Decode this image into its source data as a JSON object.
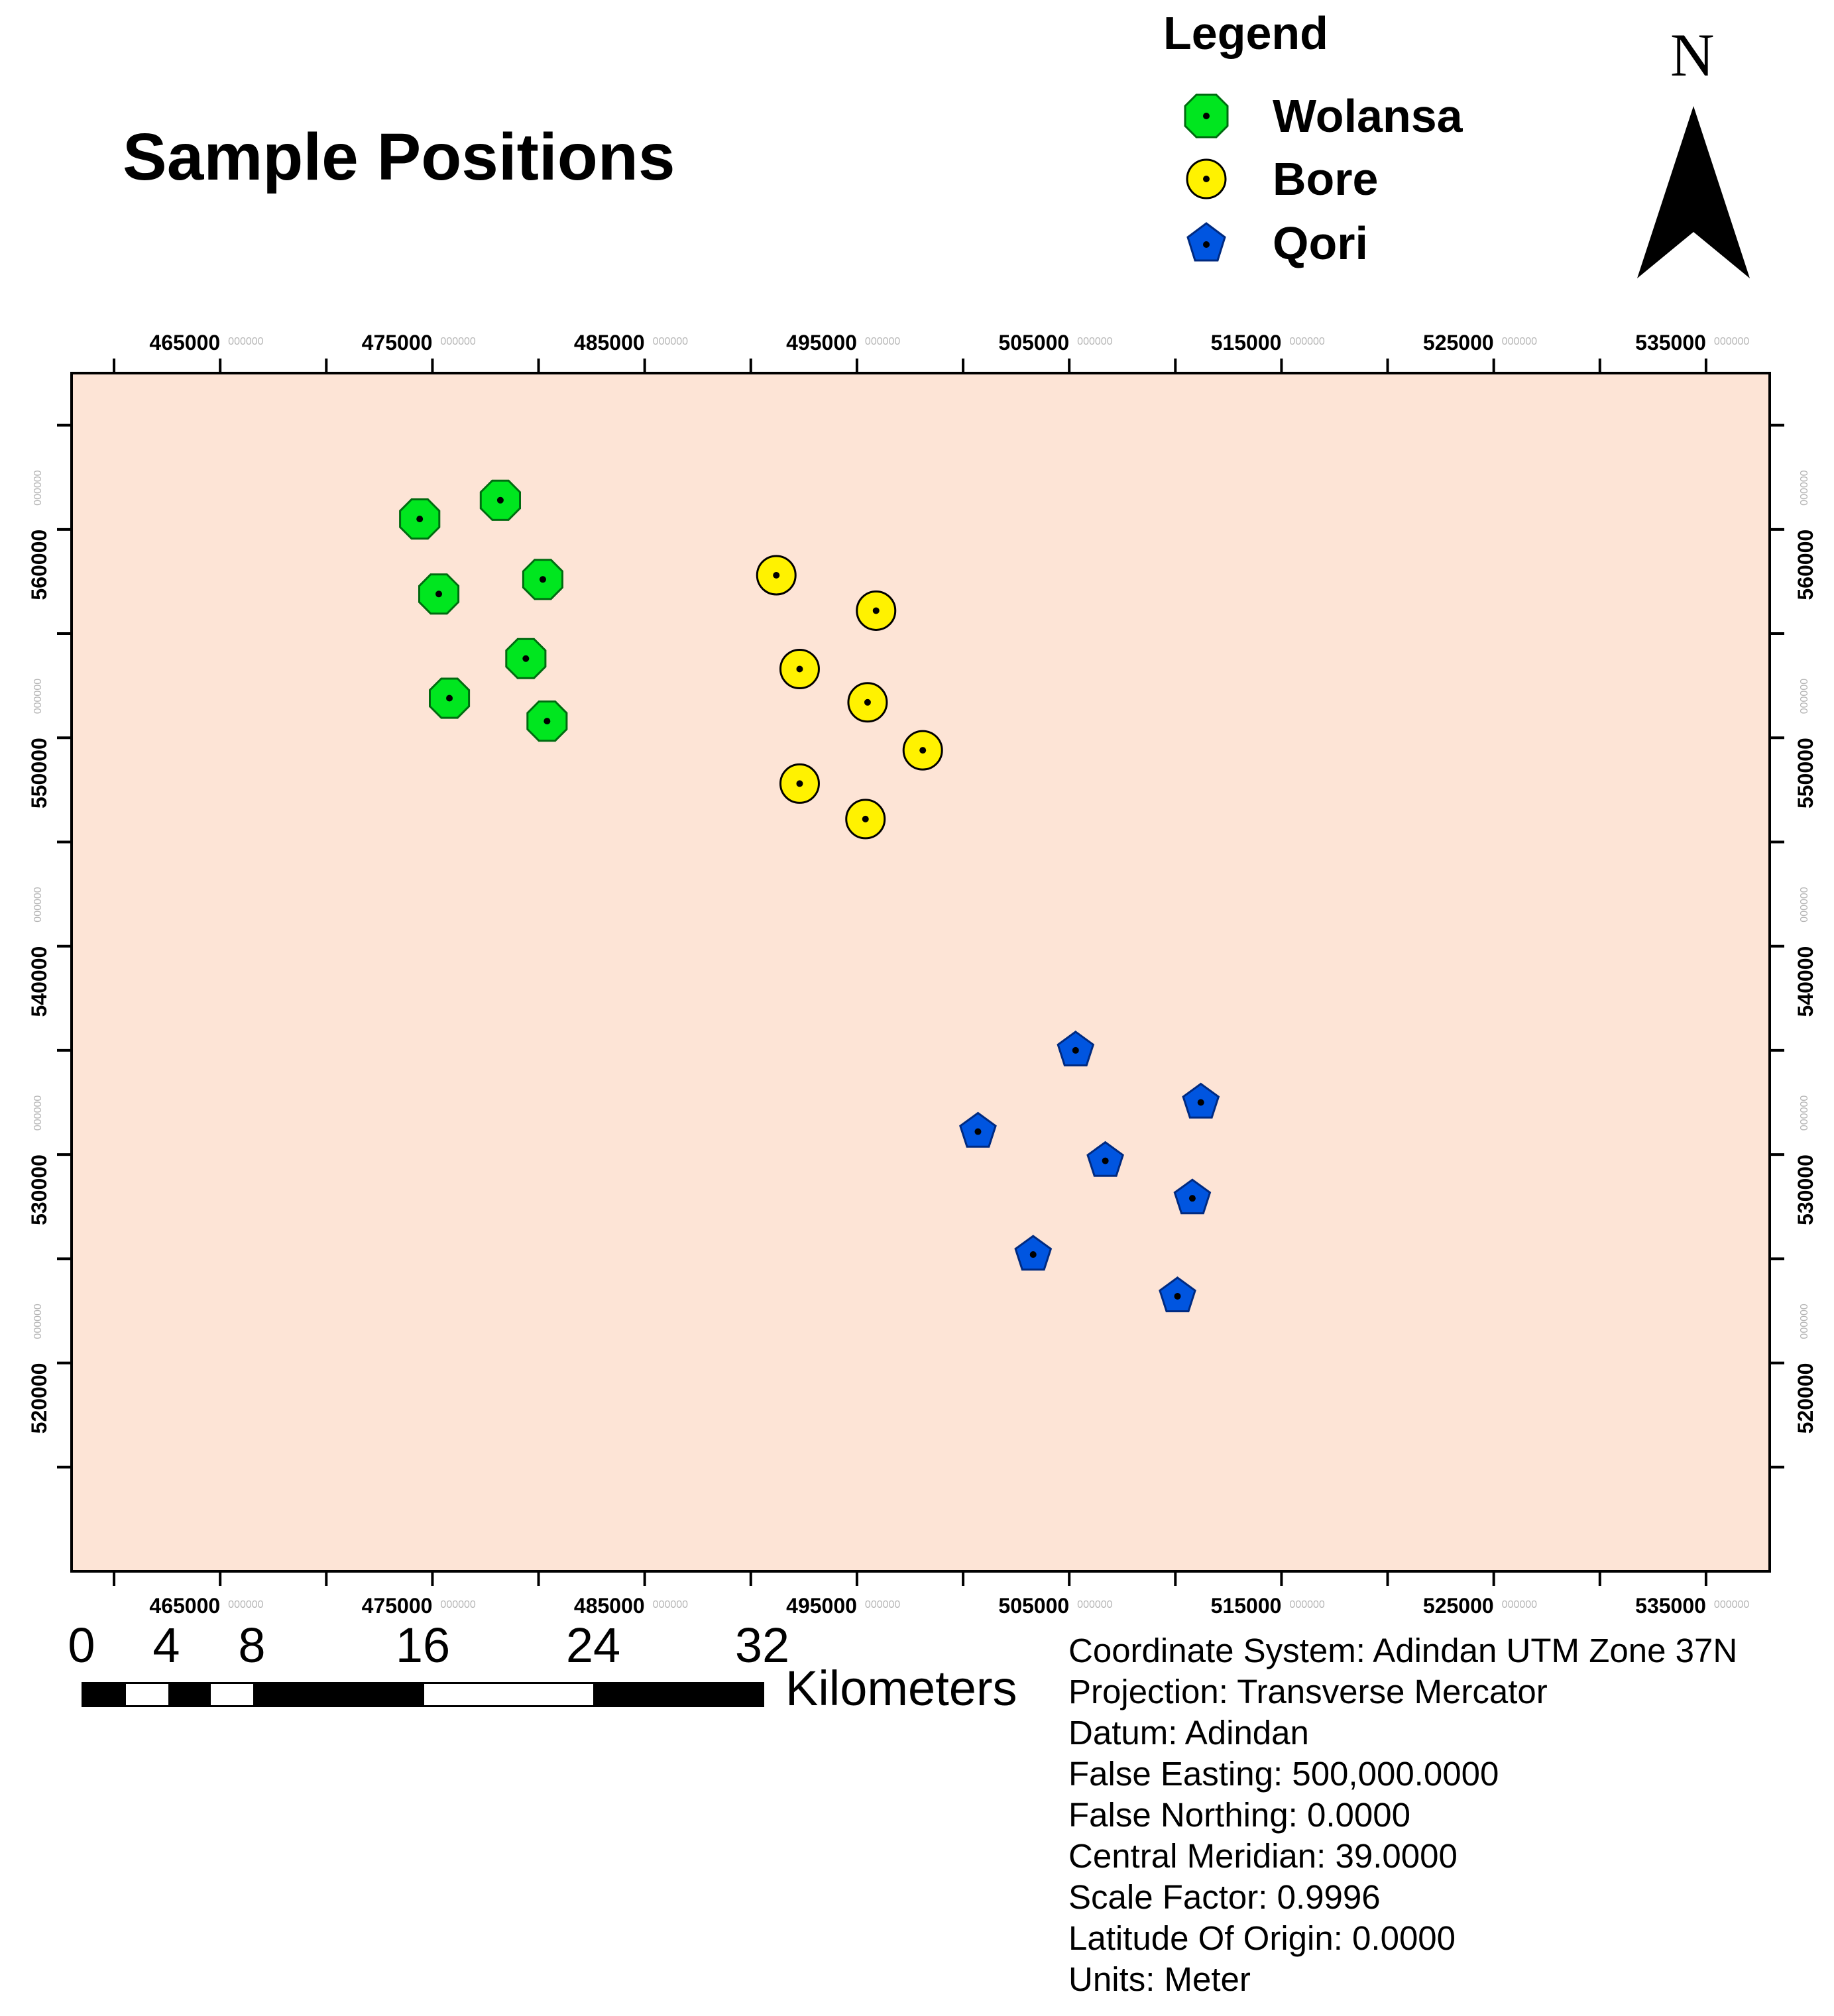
{
  "title": "Sample Positions",
  "legend": {
    "title": "Legend",
    "items": [
      {
        "label": "Wolansa",
        "symbol": "octagon",
        "color": "#00e61f"
      },
      {
        "label": "Bore",
        "symbol": "circle",
        "color": "#fff200"
      },
      {
        "label": "Qori",
        "symbol": "pentagon",
        "color": "#0055e0"
      }
    ]
  },
  "north_arrow": {
    "label": "N"
  },
  "map": {
    "background_color": "#fde4d6",
    "x_range": [
      458000,
      538000
    ],
    "y_range": [
      510000,
      567500
    ],
    "x_ticks": [
      465000,
      475000,
      485000,
      495000,
      505000,
      515000,
      525000,
      535000
    ],
    "x_tick_labels": [
      "465000",
      "475000",
      "485000",
      "495000",
      "505000",
      "515000",
      "525000",
      "535000"
    ],
    "x_tick_suffix": "000000",
    "y_ticks": [
      520000,
      530000,
      540000,
      550000,
      560000
    ],
    "y_tick_labels": [
      "520000",
      "530000",
      "540000",
      "550000",
      "560000"
    ],
    "y_tick_suffix": "000000",
    "points": [
      {
        "site": "Wolansa",
        "x": 474400,
        "y": 560500
      },
      {
        "site": "Wolansa",
        "x": 478200,
        "y": 561400
      },
      {
        "site": "Wolansa",
        "x": 475300,
        "y": 556900
      },
      {
        "site": "Wolansa",
        "x": 480200,
        "y": 557600
      },
      {
        "site": "Wolansa",
        "x": 479400,
        "y": 553800
      },
      {
        "site": "Wolansa",
        "x": 475800,
        "y": 551900
      },
      {
        "site": "Wolansa",
        "x": 480400,
        "y": 550800
      },
      {
        "site": "Bore",
        "x": 491200,
        "y": 557800
      },
      {
        "site": "Bore",
        "x": 495900,
        "y": 556100
      },
      {
        "site": "Bore",
        "x": 492300,
        "y": 553300
      },
      {
        "site": "Bore",
        "x": 495500,
        "y": 551700
      },
      {
        "site": "Bore",
        "x": 498100,
        "y": 549400
      },
      {
        "site": "Bore",
        "x": 492300,
        "y": 547800
      },
      {
        "site": "Bore",
        "x": 495400,
        "y": 546100
      },
      {
        "site": "Qori",
        "x": 505300,
        "y": 535000
      },
      {
        "site": "Qori",
        "x": 511200,
        "y": 532500
      },
      {
        "site": "Qori",
        "x": 500700,
        "y": 531100
      },
      {
        "site": "Qori",
        "x": 506700,
        "y": 529700
      },
      {
        "site": "Qori",
        "x": 510800,
        "y": 527900
      },
      {
        "site": "Qori",
        "x": 503300,
        "y": 525200
      },
      {
        "site": "Qori",
        "x": 510100,
        "y": 523200
      }
    ]
  },
  "scale_bar": {
    "labels": [
      "0",
      "4",
      "8",
      "16",
      "24",
      "32"
    ],
    "unit": "Kilometers"
  },
  "projection_info": [
    "Coordinate System: Adindan UTM Zone 37N",
    "Projection: Transverse Mercator",
    "Datum: Adindan",
    "False Easting: 500,000.0000",
    "False Northing: 0.0000",
    "Central Meridian: 39.0000",
    "Scale Factor: 0.9996",
    "Latitude Of Origin: 0.0000",
    "Units: Meter"
  ]
}
